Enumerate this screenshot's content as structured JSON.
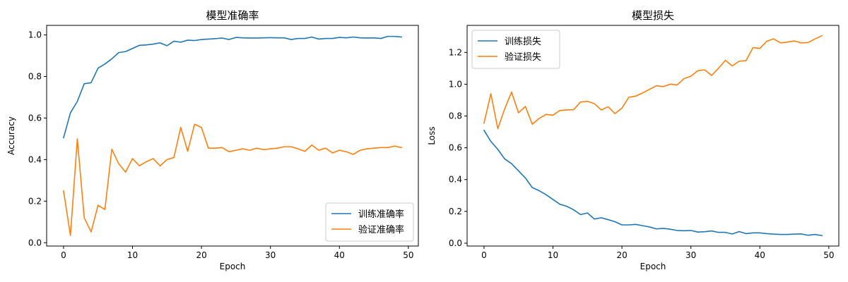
{
  "chart_data": [
    {
      "type": "line",
      "title": "模型准确率",
      "xlabel": "Epoch",
      "ylabel": "Accuracy",
      "xlim": [
        -2.45,
        51.45
      ],
      "ylim": [
        -0.016,
        1.046
      ],
      "xticks": [
        0,
        10,
        20,
        30,
        40,
        50
      ],
      "yticks": [
        0.0,
        0.2,
        0.4,
        0.6,
        0.8,
        1.0
      ],
      "grid": false,
      "legend_position": "lower right",
      "x": [
        0,
        1,
        2,
        3,
        4,
        5,
        6,
        7,
        8,
        9,
        10,
        11,
        12,
        13,
        14,
        15,
        16,
        17,
        18,
        19,
        20,
        21,
        22,
        23,
        24,
        25,
        26,
        27,
        28,
        29,
        30,
        31,
        32,
        33,
        34,
        35,
        36,
        37,
        38,
        39,
        40,
        41,
        42,
        43,
        44,
        45,
        46,
        47,
        48,
        49
      ],
      "series": [
        {
          "name": "训练准确率",
          "color": "#1f77b4",
          "values": [
            0.505,
            0.625,
            0.68,
            0.765,
            0.77,
            0.84,
            0.86,
            0.885,
            0.915,
            0.92,
            0.935,
            0.95,
            0.952,
            0.956,
            0.962,
            0.948,
            0.97,
            0.965,
            0.975,
            0.973,
            0.978,
            0.98,
            0.982,
            0.985,
            0.978,
            0.988,
            0.986,
            0.985,
            0.985,
            0.986,
            0.987,
            0.986,
            0.986,
            0.978,
            0.983,
            0.983,
            0.99,
            0.98,
            0.983,
            0.983,
            0.988,
            0.986,
            0.99,
            0.986,
            0.985,
            0.986,
            0.983,
            0.993,
            0.993,
            0.99
          ]
        },
        {
          "name": "验证准确率",
          "color": "#ff7f0e",
          "values": [
            0.25,
            0.035,
            0.5,
            0.12,
            0.052,
            0.18,
            0.16,
            0.45,
            0.38,
            0.34,
            0.405,
            0.37,
            0.39,
            0.405,
            0.37,
            0.4,
            0.41,
            0.555,
            0.44,
            0.57,
            0.555,
            0.455,
            0.455,
            0.458,
            0.438,
            0.445,
            0.452,
            0.445,
            0.455,
            0.448,
            0.452,
            0.455,
            0.462,
            0.462,
            0.452,
            0.44,
            0.47,
            0.445,
            0.455,
            0.432,
            0.445,
            0.438,
            0.425,
            0.445,
            0.452,
            0.455,
            0.458,
            0.458,
            0.465,
            0.458
          ]
        }
      ]
    },
    {
      "type": "line",
      "title": "模型损失",
      "xlabel": "Epoch",
      "ylabel": "Loss",
      "xlim": [
        -2.45,
        51.45
      ],
      "ylim": [
        -0.018,
        1.37
      ],
      "xticks": [
        0,
        10,
        20,
        30,
        40,
        50
      ],
      "yticks": [
        0.0,
        0.2,
        0.4,
        0.6,
        0.8,
        1.0,
        1.2
      ],
      "grid": false,
      "legend_position": "upper left",
      "x": [
        0,
        1,
        2,
        3,
        4,
        5,
        6,
        7,
        8,
        9,
        10,
        11,
        12,
        13,
        14,
        15,
        16,
        17,
        18,
        19,
        20,
        21,
        22,
        23,
        24,
        25,
        26,
        27,
        28,
        29,
        30,
        31,
        32,
        33,
        34,
        35,
        36,
        37,
        38,
        39,
        40,
        41,
        42,
        43,
        44,
        45,
        46,
        47,
        48,
        49
      ],
      "series": [
        {
          "name": "训练损失",
          "color": "#1f77b4",
          "values": [
            0.71,
            0.64,
            0.59,
            0.53,
            0.5,
            0.455,
            0.41,
            0.35,
            0.33,
            0.305,
            0.275,
            0.245,
            0.232,
            0.21,
            0.18,
            0.19,
            0.152,
            0.16,
            0.148,
            0.135,
            0.115,
            0.115,
            0.118,
            0.11,
            0.102,
            0.09,
            0.093,
            0.088,
            0.08,
            0.078,
            0.08,
            0.07,
            0.072,
            0.077,
            0.068,
            0.068,
            0.058,
            0.073,
            0.06,
            0.065,
            0.065,
            0.06,
            0.057,
            0.055,
            0.055,
            0.057,
            0.058,
            0.05,
            0.055,
            0.048
          ]
        },
        {
          "name": "验证损失",
          "color": "#ff7f0e",
          "values": [
            0.755,
            0.94,
            0.72,
            0.845,
            0.95,
            0.82,
            0.86,
            0.748,
            0.785,
            0.81,
            0.805,
            0.835,
            0.838,
            0.84,
            0.888,
            0.892,
            0.878,
            0.838,
            0.858,
            0.815,
            0.85,
            0.918,
            0.925,
            0.945,
            0.968,
            0.99,
            0.985,
            1.0,
            0.995,
            1.035,
            1.05,
            1.085,
            1.09,
            1.055,
            1.1,
            1.15,
            1.115,
            1.145,
            1.148,
            1.23,
            1.225,
            1.27,
            1.285,
            1.26,
            1.265,
            1.272,
            1.26,
            1.262,
            1.285,
            1.305
          ]
        }
      ]
    }
  ]
}
